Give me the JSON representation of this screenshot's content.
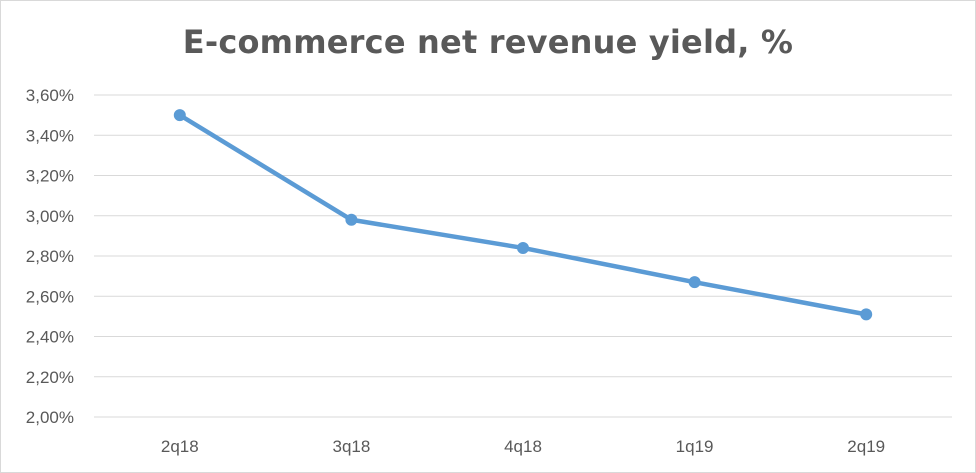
{
  "chart_data": {
    "type": "line",
    "title": "E-commerce net revenue yield, %",
    "xlabel": "",
    "ylabel": "",
    "categories": [
      "2q18",
      "3q18",
      "4q18",
      "1q19",
      "2q19"
    ],
    "series": [
      {
        "values": [
          3.5,
          2.98,
          2.84,
          2.67,
          2.51
        ]
      }
    ],
    "ylim": [
      2.0,
      3.6
    ],
    "yticks": [
      2.0,
      2.2,
      2.4,
      2.6,
      2.8,
      3.0,
      3.2,
      3.4,
      3.6
    ],
    "ytick_labels": [
      "2,00%",
      "2,20%",
      "2,40%",
      "2,60%",
      "2,80%",
      "3,00%",
      "3,20%",
      "3,40%",
      "3,60%"
    ],
    "grid": true,
    "legend": "none",
    "line_color": "#5b9bd5"
  }
}
